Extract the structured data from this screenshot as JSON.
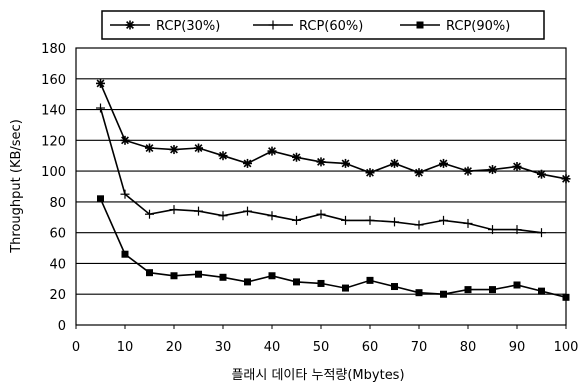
{
  "chart_data": {
    "type": "line",
    "xlabel": "플래시 데이타 누적량(Mbytes)",
    "ylabel": "Throughput (KB/sec)",
    "xlim": [
      0,
      100
    ],
    "ylim": [
      0,
      180
    ],
    "x_ticks": [
      "0",
      "10",
      "20",
      "30",
      "40",
      "50",
      "60",
      "70",
      "80",
      "90",
      "100"
    ],
    "y_ticks": [
      "0",
      "20",
      "40",
      "60",
      "80",
      "100",
      "120",
      "140",
      "160",
      "180"
    ],
    "grid": "horizontal",
    "legend_position": "top",
    "x": [
      5,
      10,
      15,
      20,
      25,
      30,
      35,
      40,
      45,
      50,
      55,
      60,
      65,
      70,
      75,
      80,
      85,
      90,
      95,
      100
    ],
    "series": [
      {
        "name": "RCP(30%)",
        "marker": "star",
        "values": [
          157,
          120,
          115,
          114,
          115,
          110,
          105,
          113,
          109,
          106,
          105,
          99,
          105,
          99,
          105,
          100,
          101,
          103,
          98,
          95
        ]
      },
      {
        "name": "RCP(60%)",
        "marker": "plus",
        "values": [
          141,
          85,
          72,
          75,
          74,
          71,
          74,
          71,
          68,
          72,
          68,
          68,
          67,
          65,
          68,
          66,
          62,
          62,
          60,
          null
        ]
      },
      {
        "name": "RCP(90%)",
        "marker": "square",
        "values": [
          82,
          46,
          34,
          32,
          33,
          31,
          28,
          32,
          28,
          27,
          24,
          29,
          25,
          21,
          20,
          23,
          23,
          26,
          22,
          18
        ]
      }
    ]
  }
}
